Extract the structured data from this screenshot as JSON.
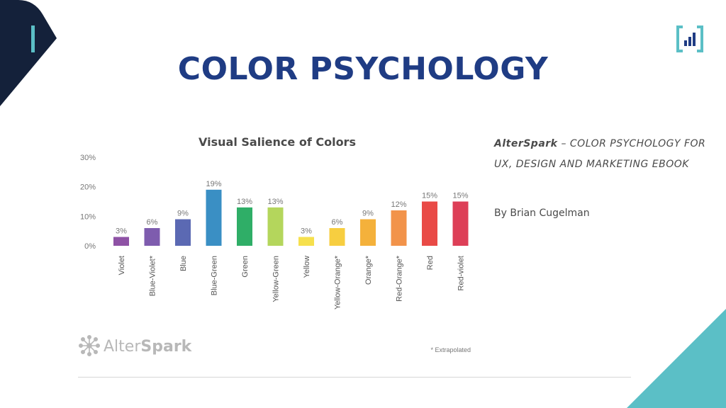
{
  "slide": {
    "title": "COLOR PSYCHOLOGY",
    "source_brand": "AlterSpark",
    "source_rest": " – COLOR PSYCHOLOGY FOR UX, DESIGN AND MARKETING EBOOK",
    "author": "By Brian Cugelman",
    "colors": {
      "title": "#1f3c84",
      "navy": "#14213a",
      "teal": "#5bbfc6"
    },
    "logo_icon": "bar-chart-icon"
  },
  "chart_data": {
    "type": "bar",
    "title": "Visual Salience of Colors",
    "categories": [
      "Violet",
      "Blue-Violet*",
      "Blue",
      "Blue-Green",
      "Green",
      "Yellow-Green",
      "Yellow",
      "Yellow-Orange*",
      "Orange*",
      "Red-Orange*",
      "Red",
      "Red-violet"
    ],
    "values": [
      3,
      6,
      9,
      19,
      13,
      13,
      3,
      6,
      9,
      12,
      15,
      15
    ],
    "data_labels": [
      "3%",
      "6%",
      "9%",
      "19%",
      "13%",
      "13%",
      "3%",
      "6%",
      "9%",
      "12%",
      "15%",
      "15%"
    ],
    "bar_colors": [
      "#8e52a5",
      "#7e5cae",
      "#5b69b3",
      "#3a8fc4",
      "#2fae67",
      "#b4d65c",
      "#f6e04d",
      "#f7ce40",
      "#f4b13b",
      "#f2934a",
      "#e94a46",
      "#dd3f57"
    ],
    "yticks": [
      0,
      10,
      20,
      30
    ],
    "ytick_labels": [
      "0%",
      "10%",
      "20%",
      "30%"
    ],
    "ylim": [
      0,
      30
    ],
    "grid": false,
    "footnote": "* Extrapolated",
    "watermark": {
      "prefix": "Alter",
      "suffix": "Spark",
      "icon": "network-icon"
    }
  }
}
